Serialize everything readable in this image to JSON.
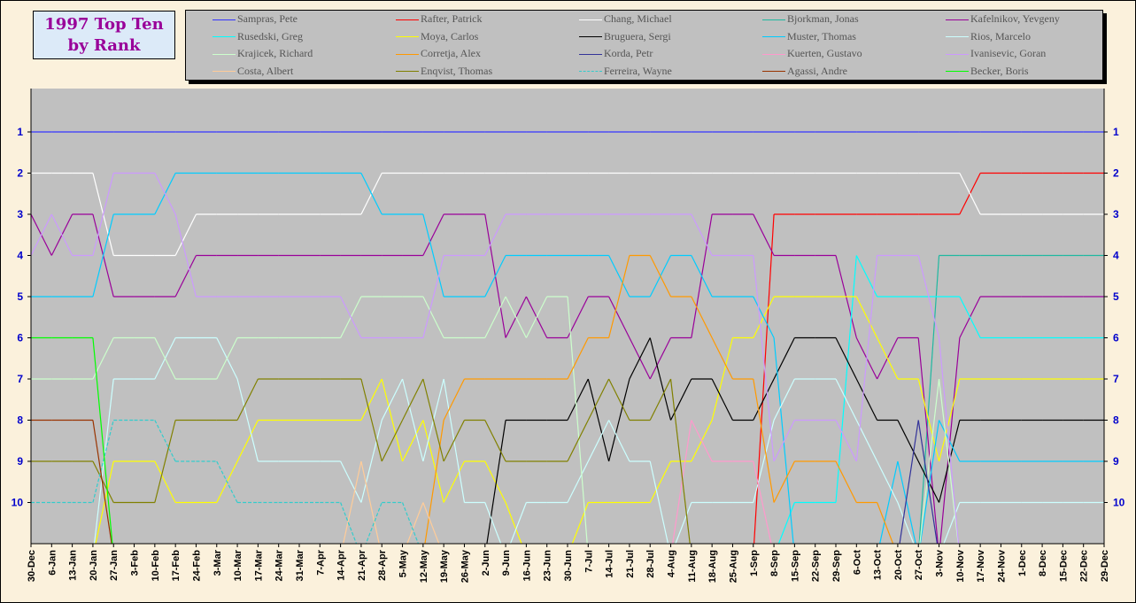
{
  "chart_data": {
    "type": "line",
    "title": "1997 Top Ten by Rank",
    "title_lines": [
      "1997 Top Ten",
      "by Rank"
    ],
    "xlabel": "",
    "ylabel": "",
    "y_axis_inverted": true,
    "ylim": [
      1,
      10
    ],
    "yticks": [
      "1",
      "2",
      "3",
      "4",
      "5",
      "6",
      "7",
      "8",
      "9",
      "10"
    ],
    "grid": false,
    "legend_position": "top",
    "note": "null = outside top ten",
    "x": [
      "30-Dec",
      "6-Jan",
      "13-Jan",
      "20-Jan",
      "27-Jan",
      "3-Feb",
      "10-Feb",
      "17-Feb",
      "24-Feb",
      "3-Mar",
      "10-Mar",
      "17-Mar",
      "24-Mar",
      "31-Mar",
      "7-Apr",
      "14-Apr",
      "21-Apr",
      "28-Apr",
      "5-May",
      "12-May",
      "19-May",
      "26-May",
      "2-Jun",
      "9-Jun",
      "16-Jun",
      "23-Jun",
      "30-Jun",
      "7-Jul",
      "14-Jul",
      "21-Jul",
      "28-Jul",
      "4-Aug",
      "11-Aug",
      "18-Aug",
      "25-Aug",
      "1-Sep",
      "8-Sep",
      "15-Sep",
      "22-Sep",
      "29-Sep",
      "6-Oct",
      "13-Oct",
      "20-Oct",
      "27-Oct",
      "3-Nov",
      "10-Nov",
      "17-Nov",
      "24-Nov",
      "1-Dec",
      "8-Dec",
      "15-Dec",
      "22-Dec",
      "29-Dec"
    ],
    "series": [
      {
        "name": "Sampras, Pete",
        "color": "#3333ff",
        "values": [
          1,
          1,
          1,
          1,
          1,
          1,
          1,
          1,
          1,
          1,
          1,
          1,
          1,
          1,
          1,
          1,
          1,
          1,
          1,
          1,
          1,
          1,
          1,
          1,
          1,
          1,
          1,
          1,
          1,
          1,
          1,
          1,
          1,
          1,
          1,
          1,
          1,
          1,
          1,
          1,
          1,
          1,
          1,
          1,
          1,
          1,
          1,
          1,
          1,
          1,
          1,
          1,
          1
        ]
      },
      {
        "name": "Rafter, Patrick",
        "color": "#ff0000",
        "values": [
          null,
          null,
          null,
          null,
          null,
          null,
          null,
          null,
          null,
          null,
          null,
          null,
          null,
          null,
          null,
          null,
          null,
          null,
          null,
          null,
          null,
          null,
          null,
          null,
          null,
          null,
          null,
          null,
          null,
          null,
          null,
          null,
          null,
          null,
          null,
          null,
          3,
          3,
          3,
          3,
          3,
          3,
          3,
          3,
          3,
          3,
          2,
          2,
          2,
          2,
          2,
          2,
          2
        ]
      },
      {
        "name": "Chang, Michael",
        "color": "#ffffff",
        "values": [
          2,
          2,
          2,
          2,
          4,
          4,
          4,
          4,
          3,
          3,
          3,
          3,
          3,
          3,
          3,
          3,
          3,
          2,
          2,
          2,
          2,
          2,
          2,
          2,
          2,
          2,
          2,
          2,
          2,
          2,
          2,
          2,
          2,
          2,
          2,
          2,
          2,
          2,
          2,
          2,
          2,
          2,
          2,
          2,
          2,
          2,
          3,
          3,
          3,
          3,
          3,
          3,
          3
        ]
      },
      {
        "name": "Bjorkman, Jonas",
        "color": "#1fb8a0",
        "values": [
          null,
          null,
          null,
          null,
          null,
          null,
          null,
          null,
          null,
          null,
          null,
          null,
          null,
          null,
          null,
          null,
          null,
          null,
          null,
          null,
          null,
          null,
          null,
          null,
          null,
          null,
          null,
          null,
          null,
          null,
          null,
          null,
          null,
          null,
          null,
          null,
          null,
          null,
          null,
          null,
          null,
          null,
          null,
          null,
          4,
          4,
          4,
          4,
          4,
          4,
          4,
          4,
          4
        ]
      },
      {
        "name": "Kafelnikov, Yevgeny",
        "color": "#990099",
        "values": [
          3,
          4,
          3,
          3,
          5,
          5,
          5,
          5,
          4,
          4,
          4,
          4,
          4,
          4,
          4,
          4,
          4,
          4,
          4,
          4,
          3,
          3,
          3,
          6,
          5,
          6,
          6,
          5,
          5,
          6,
          7,
          6,
          6,
          3,
          3,
          3,
          4,
          4,
          4,
          4,
          6,
          7,
          6,
          6,
          null,
          6,
          5,
          5,
          5,
          5,
          5,
          5,
          5
        ]
      },
      {
        "name": "Rusedski, Greg",
        "color": "#00ffff",
        "values": [
          null,
          null,
          null,
          null,
          null,
          null,
          null,
          null,
          null,
          null,
          null,
          null,
          null,
          null,
          null,
          null,
          null,
          null,
          null,
          null,
          null,
          null,
          null,
          null,
          null,
          null,
          null,
          null,
          null,
          null,
          null,
          null,
          null,
          null,
          null,
          null,
          null,
          10,
          10,
          10,
          4,
          5,
          5,
          5,
          5,
          5,
          6,
          6,
          6,
          6,
          6,
          6,
          6
        ]
      },
      {
        "name": "Moya, Carlos",
        "color": "#ffff00",
        "values": [
          null,
          null,
          null,
          null,
          9,
          9,
          9,
          10,
          10,
          10,
          9,
          8,
          8,
          8,
          8,
          8,
          8,
          7,
          9,
          8,
          10,
          9,
          9,
          10,
          null,
          null,
          null,
          10,
          10,
          10,
          10,
          9,
          9,
          8,
          6,
          6,
          5,
          5,
          5,
          5,
          5,
          6,
          7,
          7,
          9,
          7,
          7,
          7,
          7,
          7,
          7,
          7,
          7
        ]
      },
      {
        "name": "Bruguera, Sergi",
        "color": "#000000",
        "values": [
          null,
          null,
          null,
          null,
          null,
          null,
          null,
          null,
          null,
          null,
          null,
          null,
          null,
          null,
          null,
          null,
          null,
          null,
          null,
          null,
          null,
          null,
          null,
          8,
          8,
          8,
          8,
          7,
          9,
          7,
          6,
          8,
          7,
          7,
          8,
          8,
          7,
          6,
          6,
          6,
          7,
          8,
          8,
          9,
          10,
          8,
          8,
          8,
          8,
          8,
          8,
          8,
          8
        ]
      },
      {
        "name": "Muster, Thomas",
        "color": "#00ccff",
        "values": [
          5,
          5,
          5,
          5,
          3,
          3,
          3,
          2,
          2,
          2,
          2,
          2,
          2,
          2,
          2,
          2,
          2,
          3,
          3,
          3,
          5,
          5,
          5,
          4,
          4,
          4,
          4,
          4,
          4,
          5,
          5,
          4,
          4,
          5,
          5,
          5,
          6,
          null,
          null,
          null,
          null,
          null,
          9,
          null,
          8,
          9,
          9,
          9,
          9,
          9,
          9,
          9,
          9
        ]
      },
      {
        "name": "Rios, Marcelo",
        "color": "#ccffff",
        "values": [
          null,
          null,
          null,
          null,
          7,
          7,
          7,
          6,
          6,
          6,
          7,
          9,
          9,
          9,
          9,
          9,
          10,
          8,
          7,
          9,
          7,
          10,
          10,
          null,
          10,
          10,
          10,
          9,
          8,
          9,
          9,
          null,
          10,
          10,
          10,
          10,
          8,
          7,
          7,
          7,
          8,
          9,
          10,
          null,
          null,
          10,
          10,
          10,
          10,
          10,
          10,
          10,
          10
        ]
      },
      {
        "name": "Krajicek, Richard",
        "color": "#ccffcc",
        "values": [
          7,
          7,
          7,
          7,
          6,
          6,
          6,
          7,
          7,
          7,
          6,
          6,
          6,
          6,
          6,
          6,
          5,
          5,
          5,
          5,
          6,
          6,
          6,
          5,
          6,
          5,
          5,
          null,
          null,
          null,
          null,
          null,
          null,
          null,
          null,
          null,
          null,
          null,
          null,
          null,
          null,
          null,
          null,
          null,
          7,
          null,
          null,
          null,
          null,
          null,
          null,
          null,
          null
        ]
      },
      {
        "name": "Corretja, Alex",
        "color": "#ff9900",
        "values": [
          null,
          null,
          null,
          null,
          null,
          null,
          null,
          null,
          null,
          null,
          null,
          null,
          null,
          null,
          null,
          null,
          null,
          null,
          null,
          null,
          8,
          7,
          7,
          7,
          7,
          7,
          7,
          6,
          6,
          4,
          4,
          5,
          5,
          6,
          7,
          7,
          10,
          9,
          9,
          9,
          10,
          10,
          null,
          null,
          null,
          null,
          null,
          null,
          null,
          null,
          null,
          null,
          null
        ]
      },
      {
        "name": "Korda, Petr",
        "color": "#333399",
        "values": [
          null,
          null,
          null,
          null,
          null,
          null,
          null,
          null,
          null,
          null,
          null,
          null,
          null,
          null,
          null,
          null,
          null,
          null,
          null,
          null,
          null,
          null,
          null,
          null,
          null,
          null,
          null,
          null,
          null,
          null,
          null,
          null,
          null,
          null,
          null,
          null,
          null,
          null,
          null,
          null,
          null,
          null,
          null,
          8,
          null,
          null,
          null,
          null,
          null,
          null,
          null,
          null,
          null
        ]
      },
      {
        "name": "Kuerten, Gustavo",
        "color": "#ff99cc",
        "values": [
          null,
          null,
          null,
          null,
          null,
          null,
          null,
          null,
          null,
          null,
          null,
          null,
          null,
          null,
          null,
          null,
          null,
          null,
          null,
          null,
          null,
          null,
          null,
          null,
          null,
          null,
          null,
          null,
          null,
          null,
          null,
          null,
          8,
          9,
          9,
          9,
          null,
          null,
          null,
          null,
          null,
          null,
          null,
          null,
          null,
          null,
          null,
          null,
          null,
          null,
          null,
          null,
          null
        ]
      },
      {
        "name": "Ivanisevic, Goran",
        "color": "#cc99ff",
        "values": [
          4,
          3,
          4,
          4,
          2,
          2,
          2,
          3,
          5,
          5,
          5,
          5,
          5,
          5,
          5,
          5,
          6,
          6,
          6,
          6,
          4,
          4,
          4,
          3,
          3,
          3,
          3,
          3,
          3,
          3,
          3,
          3,
          3,
          4,
          4,
          4,
          9,
          8,
          8,
          8,
          9,
          4,
          4,
          4,
          6,
          null,
          null,
          null,
          null,
          null,
          null,
          null,
          null
        ]
      },
      {
        "name": "Costa, Albert",
        "color": "#ffcc99",
        "values": [
          null,
          null,
          null,
          null,
          null,
          null,
          null,
          null,
          null,
          null,
          null,
          null,
          null,
          null,
          null,
          null,
          9,
          null,
          null,
          10,
          null,
          null,
          null,
          null,
          null,
          null,
          null,
          null,
          null,
          null,
          null,
          null,
          null,
          null,
          null,
          null,
          null,
          null,
          null,
          null,
          null,
          null,
          null,
          null,
          null,
          null,
          null,
          null,
          null,
          null,
          null,
          null,
          null
        ]
      },
      {
        "name": "Enqvist, Thomas",
        "color": "#808000",
        "values": [
          9,
          9,
          9,
          9,
          10,
          10,
          10,
          8,
          8,
          8,
          8,
          7,
          7,
          7,
          7,
          7,
          7,
          9,
          8,
          7,
          9,
          8,
          8,
          9,
          9,
          9,
          9,
          8,
          7,
          8,
          8,
          7,
          null,
          null,
          null,
          null,
          null,
          null,
          null,
          null,
          null,
          null,
          null,
          null,
          null,
          null,
          null,
          null,
          null,
          null,
          null,
          null,
          null
        ]
      },
      {
        "name": "Ferreira, Wayne",
        "color": "#33cccc",
        "dashed": true,
        "values": [
          10,
          10,
          10,
          10,
          8,
          8,
          8,
          9,
          9,
          9,
          10,
          10,
          10,
          10,
          10,
          10,
          null,
          10,
          10,
          null,
          null,
          null,
          null,
          null,
          null,
          null,
          null,
          null,
          null,
          null,
          null,
          null,
          null,
          null,
          null,
          null,
          null,
          null,
          null,
          null,
          null,
          null,
          null,
          null,
          null,
          null,
          null,
          null,
          null,
          null,
          null,
          null,
          null
        ]
      },
      {
        "name": "Agassi, Andre",
        "color": "#993300",
        "values": [
          8,
          8,
          8,
          8,
          null,
          null,
          null,
          null,
          null,
          null,
          null,
          null,
          null,
          null,
          null,
          null,
          null,
          null,
          null,
          null,
          null,
          null,
          null,
          null,
          null,
          null,
          null,
          null,
          null,
          null,
          null,
          null,
          null,
          null,
          null,
          null,
          null,
          null,
          null,
          null,
          null,
          null,
          null,
          null,
          null,
          null,
          null,
          null,
          null,
          null,
          null,
          null,
          null
        ]
      },
      {
        "name": "Becker, Boris",
        "color": "#00ff00",
        "values": [
          6,
          6,
          6,
          6,
          null,
          null,
          null,
          null,
          null,
          null,
          null,
          null,
          null,
          null,
          null,
          null,
          null,
          null,
          null,
          null,
          null,
          null,
          null,
          null,
          null,
          null,
          null,
          null,
          null,
          null,
          null,
          null,
          null,
          null,
          null,
          null,
          null,
          null,
          null,
          null,
          null,
          null,
          null,
          null,
          null,
          null,
          null,
          null,
          null,
          null,
          null,
          null,
          null
        ]
      }
    ]
  },
  "colors": {
    "plot_background": "#c0c0c0",
    "page_background": "#fbf1dc",
    "title": "#990099",
    "axis_labels": "#0000cc"
  }
}
